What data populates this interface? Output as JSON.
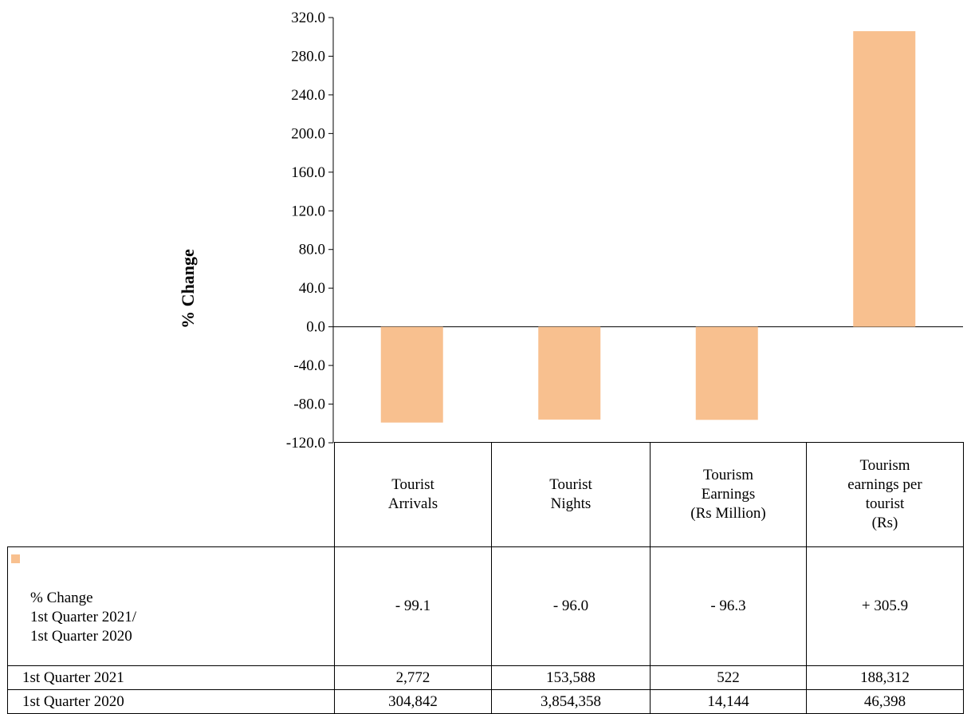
{
  "chart_data": {
    "type": "bar",
    "categories": [
      "Tourist\nArrivals",
      "Tourist\nNights",
      "Tourism\nEarnings\n(Rs Million)",
      "Tourism\nearnings per\ntourist\n(Rs)"
    ],
    "series": [
      {
        "name": "% Change\n1st Quarter 2021/\n1st Quarter 2020",
        "values": [
          -99.1,
          -96.0,
          -96.3,
          305.9
        ]
      }
    ],
    "ylabel": "% Change",
    "ylim": [
      -120,
      320
    ],
    "yticks": [
      "320.0",
      "280.0",
      "240.0",
      "200.0",
      "160.0",
      "120.0",
      "80.0",
      "40.0",
      "0.0",
      "-40.0",
      "-80.0",
      "-120.0"
    ],
    "bar_color": "#f8c08f",
    "legend": "data table (left column)",
    "grid": false
  },
  "table": {
    "rows": [
      {
        "label": "% Change\n1st Quarter 2021/\n1st Quarter 2020",
        "cells": [
          "- 99.1",
          "- 96.0",
          "- 96.3",
          "+ 305.9"
        ]
      },
      {
        "label": "1st Quarter 2021",
        "cells": [
          "2,772",
          "153,588",
          "522",
          "188,312"
        ]
      },
      {
        "label": "1st Quarter 2020",
        "cells": [
          "304,842",
          "3,854,358",
          "14,144",
          "46,398"
        ]
      }
    ]
  }
}
